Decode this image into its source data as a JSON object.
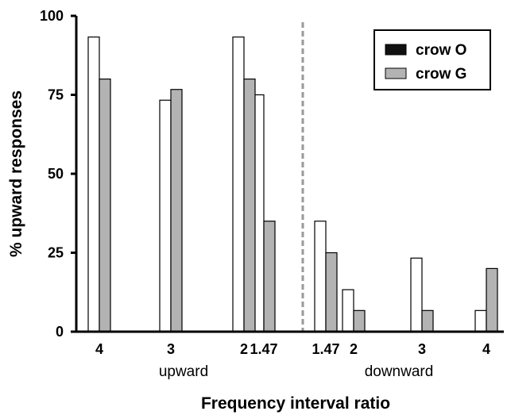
{
  "chart_data": {
    "type": "bar",
    "xlabel": "Frequency interval ratio",
    "ylabel": "% upward responses",
    "ylim": [
      0,
      100
    ],
    "yticks": [
      0,
      25,
      50,
      75,
      100
    ],
    "grid": false,
    "legend_position": "top-right",
    "categories": [
      "4",
      "3",
      "2",
      "1.47",
      "1.47",
      "2",
      "3",
      "4"
    ],
    "category_groups": [
      {
        "label": "upward",
        "categories": [
          "4",
          "3",
          "2",
          "1.47"
        ]
      },
      {
        "label": "downward",
        "categories": [
          "1.47",
          "2",
          "3",
          "4"
        ]
      }
    ],
    "series": [
      {
        "name": "crow O",
        "values": [
          93.3,
          73.3,
          93.3,
          75,
          35,
          13.3,
          23.3,
          6.7
        ],
        "fill": "#ffffff",
        "legend_swatch": "#111111"
      },
      {
        "name": "crow G",
        "values": [
          80,
          76.7,
          80,
          35,
          25,
          6.7,
          6.7,
          20
        ],
        "fill": "#b3b3b3",
        "legend_swatch": "#b3b3b3"
      }
    ],
    "divider": {
      "between_categories": [
        3,
        4
      ],
      "style": "dashed",
      "color": "#999999"
    }
  }
}
